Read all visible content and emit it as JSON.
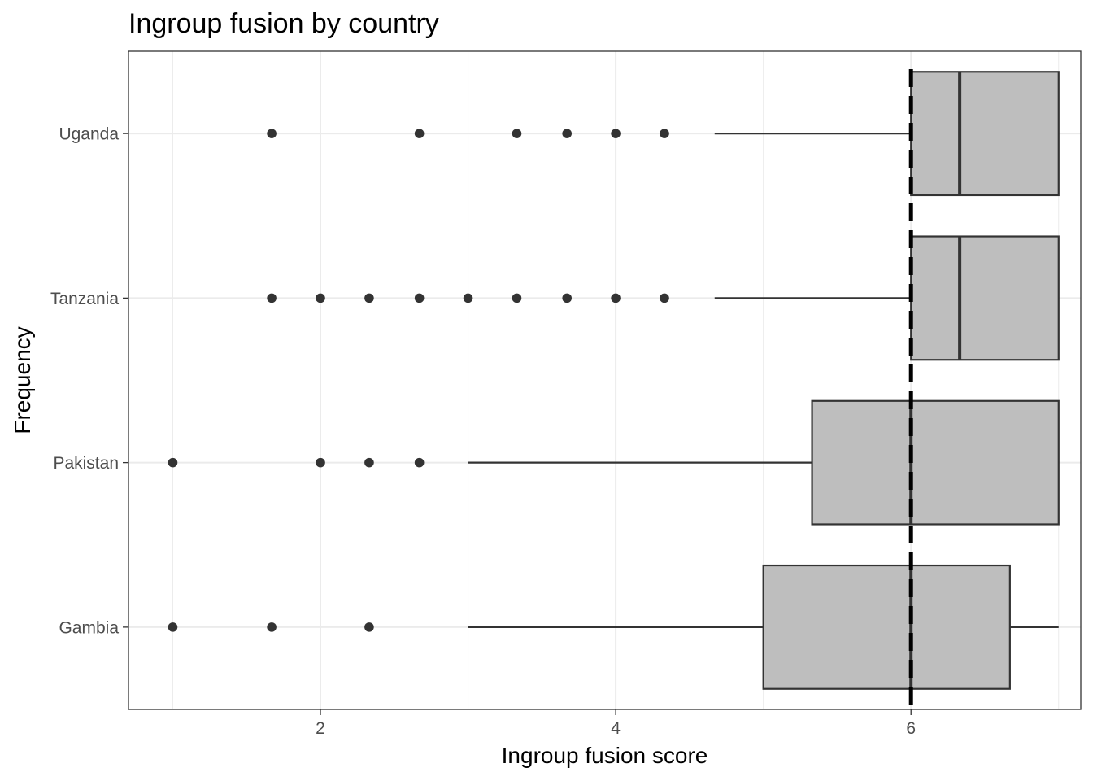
{
  "chart_data": {
    "type": "boxplot",
    "orientation": "horizontal",
    "title": "Ingroup fusion by country",
    "xlabel": "Ingroup fusion score",
    "ylabel": "Frequency",
    "xlim": [
      0.7,
      7.15
    ],
    "x_ticks": [
      2,
      4,
      6
    ],
    "categories": [
      "Gambia",
      "Pakistan",
      "Tanzania",
      "Uganda"
    ],
    "grid": true,
    "reference_line": {
      "x": 6,
      "style": "dashed",
      "color": "#000000"
    },
    "box_fill": "#bebebe",
    "box_stroke": "#333333",
    "point_color": "#333333",
    "boxes": [
      {
        "category": "Gambia",
        "whisker_low": 3.0,
        "q1": 5.0,
        "median": 6.0,
        "q3": 6.67,
        "whisker_high": 7.0,
        "outliers": [
          1.0,
          1.67,
          2.33
        ]
      },
      {
        "category": "Pakistan",
        "whisker_low": 3.0,
        "q1": 5.33,
        "median": 6.0,
        "q3": 7.0,
        "whisker_high": 7.0,
        "outliers": [
          1.0,
          2.0,
          2.33,
          2.67
        ]
      },
      {
        "category": "Tanzania",
        "whisker_low": 4.67,
        "q1": 6.0,
        "median": 6.33,
        "q3": 7.0,
        "whisker_high": 7.0,
        "outliers": [
          1.67,
          2.0,
          2.33,
          2.67,
          3.0,
          3.33,
          3.67,
          4.0,
          4.33
        ]
      },
      {
        "category": "Uganda",
        "whisker_low": 4.67,
        "q1": 6.0,
        "median": 6.33,
        "q3": 7.0,
        "whisker_high": 7.0,
        "outliers": [
          1.67,
          2.67,
          3.33,
          3.67,
          4.0,
          4.33
        ]
      }
    ]
  }
}
